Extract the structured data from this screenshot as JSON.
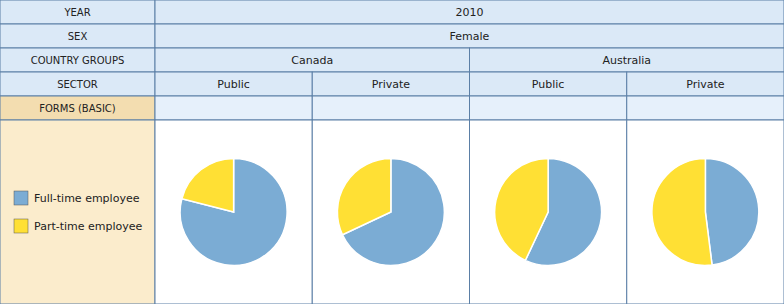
{
  "chart_data": [
    {
      "type": "pie",
      "title": "Public",
      "annotations": [
        "YEAR",
        "2010",
        "SEX",
        "Female",
        "COUNTRY GROUPS",
        "Canada",
        "Australia",
        "SECTOR",
        "FORMS (BASIC)"
      ],
      "categories": [
        "Full-time employee",
        "Part-time employee"
      ],
      "values": [
        79,
        21
      ],
      "colors": [
        "#7bacd4",
        "#ffe034"
      ],
      "legend": "left"
    },
    {
      "type": "pie",
      "title": "Private",
      "categories": [
        "Full-time employee",
        "Part-time employee"
      ],
      "values": [
        68,
        32
      ],
      "colors": [
        "#7bacd4",
        "#ffe034"
      ]
    },
    {
      "type": "pie",
      "title": "Public",
      "categories": [
        "Full-time employee",
        "Part-time employee"
      ],
      "values": [
        57,
        43
      ],
      "colors": [
        "#7bacd4",
        "#ffe034"
      ]
    },
    {
      "type": "pie",
      "title": "Private",
      "categories": [
        "Full-time employee",
        "Part-time employee"
      ],
      "values": [
        48,
        52
      ],
      "colors": [
        "#7bacd4",
        "#ffe034"
      ]
    }
  ]
}
